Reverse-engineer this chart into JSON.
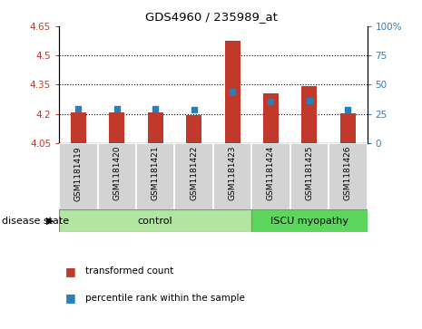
{
  "title": "GDS4960 / 235989_at",
  "samples": [
    "GSM1181419",
    "GSM1181420",
    "GSM1181421",
    "GSM1181422",
    "GSM1181423",
    "GSM1181424",
    "GSM1181425",
    "GSM1181426"
  ],
  "bar_values": [
    4.21,
    4.21,
    4.21,
    4.195,
    4.575,
    4.305,
    4.345,
    4.205
  ],
  "bar_bottom": 4.05,
  "percentile_values": [
    4.225,
    4.228,
    4.225,
    4.222,
    4.315,
    4.265,
    4.27,
    4.224
  ],
  "ylim_left": [
    4.05,
    4.65
  ],
  "ylim_right": [
    0,
    100
  ],
  "yticks_left": [
    4.05,
    4.2,
    4.35,
    4.5,
    4.65
  ],
  "yticks_right": [
    0,
    25,
    50,
    75,
    100
  ],
  "ytick_labels_left": [
    "4.05",
    "4.2",
    "4.35",
    "4.5",
    "4.65"
  ],
  "ytick_labels_right": [
    "0",
    "25",
    "50",
    "75",
    "100%"
  ],
  "bar_color": "#c0392b",
  "percentile_color": "#2980b9",
  "control_label": "control",
  "disease_label": "ISCU myopathy",
  "disease_state_label": "disease state",
  "legend_bar_label": "transformed count",
  "legend_pct_label": "percentile rank within the sample",
  "control_color": "#b2e5a0",
  "disease_color": "#5cd65c",
  "left_tick_color": "#c0392b",
  "right_tick_color": "#2980b9",
  "grid_yticks": [
    4.2,
    4.35,
    4.5
  ]
}
